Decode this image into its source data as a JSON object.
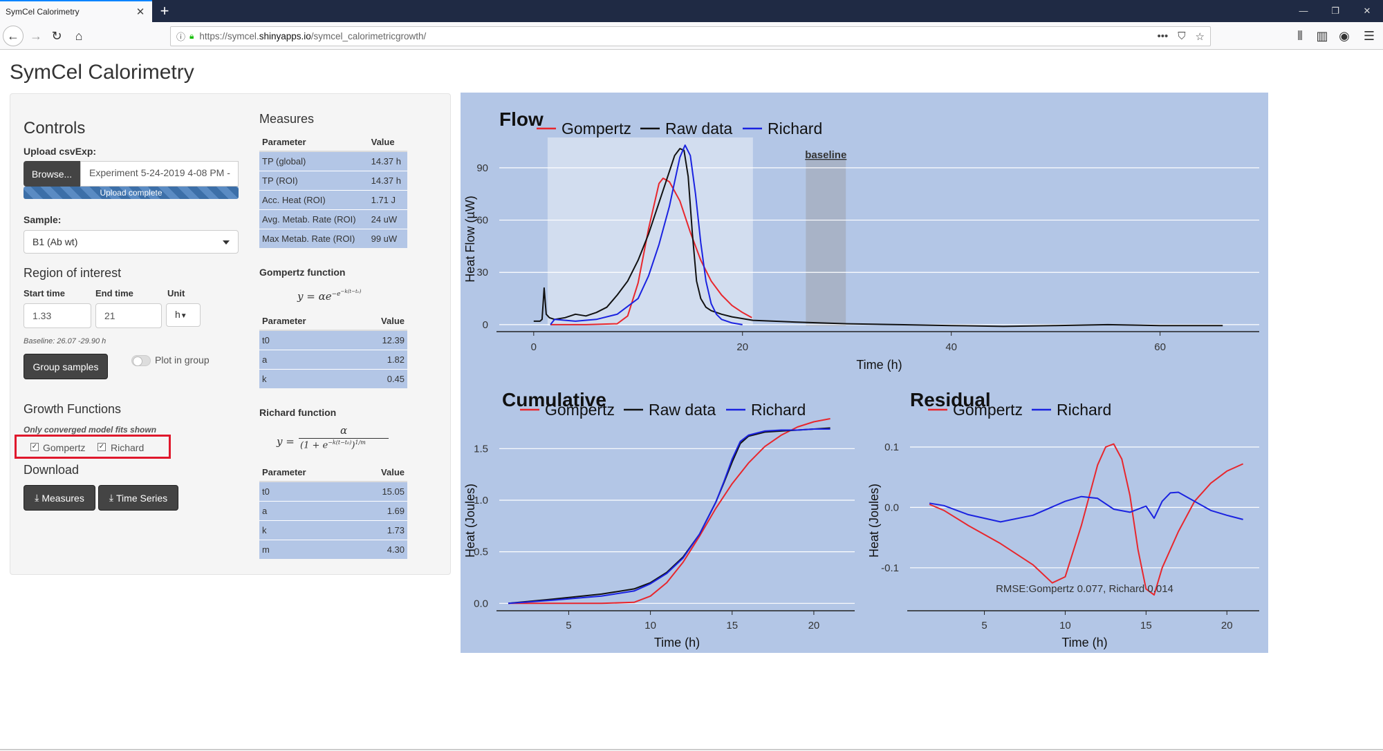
{
  "browser": {
    "tab_title": "SymCel Calorimetry",
    "tab_close": "✕",
    "new_tab": "+",
    "url_domain_pre": "https://symcel.",
    "url_domain": "shinyapps.io",
    "url_path": "/symcel_calorimetricgrowth/"
  },
  "app": {
    "title": "SymCel Calorimetry",
    "controls_heading": "Controls",
    "upload_label": "Upload csvExp:",
    "browse_label": "Browse...",
    "file_name": "Experiment 5-24-2019 4-08 PM -",
    "upload_status": "Upload complete",
    "upload_progress": 1.0,
    "sample_label": "Sample:",
    "sample_value": "B1 (Ab wt)",
    "roi_heading": "Region of interest",
    "start_label": "Start time",
    "end_label": "End time",
    "unit_label": "Unit",
    "start_value": "1.33",
    "end_value": "21",
    "unit_value": "h",
    "baseline_note": "Baseline: 26.07 -29.90 h",
    "group_button": "Group samples",
    "plot_in_group": "Plot in group",
    "plot_in_group_on": false,
    "growth_heading": "Growth Functions",
    "converged_note": "Only converged model fits shown",
    "gompertz_label": "Gompertz",
    "richard_label": "Richard",
    "gompertz_checked": true,
    "richard_checked": true,
    "download_heading": "Download",
    "measures_button": "Measures",
    "timeseries_button": "Time Series"
  },
  "measures": {
    "heading": "Measures",
    "col_param": "Parameter",
    "col_value": "Value",
    "rows": [
      {
        "param": "TP (global)",
        "value": "14.37 h"
      },
      {
        "param": "TP (ROI)",
        "value": "14.37 h"
      },
      {
        "param": "Acc. Heat (ROI)",
        "value": "1.71 J"
      },
      {
        "param": "Avg. Metab. Rate (ROI)",
        "value": "24 uW"
      },
      {
        "param": "Max Metab. Rate (ROI)",
        "value": "99 uW"
      }
    ],
    "gompertz_heading": "Gompertz function",
    "gompertz_rows": [
      {
        "param": "t0",
        "value": "12.39"
      },
      {
        "param": "a",
        "value": "1.82"
      },
      {
        "param": "k",
        "value": "0.45"
      }
    ],
    "richard_heading": "Richard function",
    "richard_rows": [
      {
        "param": "t0",
        "value": "15.05"
      },
      {
        "param": "a",
        "value": "1.69"
      },
      {
        "param": "k",
        "value": "1.73"
      },
      {
        "param": "m",
        "value": "4.30"
      }
    ]
  },
  "colors": {
    "gompertz": "#e8262c",
    "raw": "#111111",
    "richard": "#1a22e0",
    "panel_bg": "#b3c6e6"
  },
  "chart_data": [
    {
      "type": "line",
      "title": "Flow",
      "xlabel": "Time (h)",
      "ylabel": "Heat Flow (µW)",
      "xticks": [
        "0",
        "20",
        "40",
        "60"
      ],
      "yticks": [
        "0",
        "30",
        "60",
        "90"
      ],
      "xlim": [
        -3.3,
        69.5
      ],
      "ylim": [
        -4,
        107
      ],
      "highlight_roi": [
        1.33,
        21
      ],
      "baseline_band": [
        26.07,
        29.9
      ],
      "baseline_label": "baseline",
      "legend": [
        "Gompertz",
        "Raw data",
        "Richard"
      ],
      "series": [
        {
          "name": "Gompertz",
          "x": [
            1.6,
            5,
            8,
            9,
            10,
            11,
            12,
            12.39,
            13,
            14,
            15,
            16,
            17,
            18,
            19,
            20,
            20.9
          ],
          "y": [
            0,
            0,
            0.5,
            5,
            24,
            55,
            81,
            84,
            82,
            71,
            53,
            37,
            25,
            17,
            11,
            7,
            4
          ]
        },
        {
          "name": "Raw data",
          "x": [
            0,
            0.4,
            0.6,
            0.8,
            1.0,
            1.2,
            1.5,
            2,
            3,
            4,
            5,
            6,
            7,
            8,
            9,
            10,
            11,
            12,
            13,
            13.5,
            14,
            14.4,
            14.8,
            15.2,
            15.6,
            16,
            16.5,
            17,
            18,
            19,
            20,
            21,
            25,
            30,
            35,
            40,
            45,
            50,
            55,
            60,
            66
          ],
          "y": [
            2,
            2,
            2,
            3,
            21,
            6,
            4,
            3,
            4,
            6,
            5,
            7,
            10,
            17,
            25,
            37,
            52,
            70,
            88,
            97,
            101,
            100,
            85,
            52,
            25,
            15,
            10,
            8,
            6,
            4.5,
            3.5,
            2.5,
            1.5,
            0.5,
            0,
            -0.5,
            -1,
            -0.5,
            0,
            -0.5,
            -0.5
          ]
        },
        {
          "name": "Richard",
          "x": [
            1.6,
            2,
            4,
            6,
            8,
            10,
            11,
            12,
            13,
            13.5,
            14,
            14.5,
            15,
            15.5,
            16,
            16.5,
            17,
            17.5,
            18,
            19,
            20
          ],
          "y": [
            0,
            3,
            2,
            3,
            6,
            15,
            28,
            46,
            68,
            82,
            96,
            103,
            97,
            75,
            47,
            25,
            12,
            6,
            3,
            1,
            0
          ]
        }
      ]
    },
    {
      "type": "line",
      "title": "Cumulative",
      "xlabel": "Time (h)",
      "ylabel": "Heat (Joules)",
      "xticks": [
        "5",
        "10",
        "15",
        "20"
      ],
      "yticks": [
        "0.0",
        "0.5",
        "1.0",
        "1.5"
      ],
      "xlim": [
        0.75,
        22.5
      ],
      "ylim": [
        -0.065,
        1.75
      ],
      "legend": [
        "Gompertz",
        "Raw data",
        "Richard"
      ],
      "series": [
        {
          "name": "Gompertz",
          "x": [
            1.3,
            4,
            7,
            9,
            10,
            11,
            12,
            13,
            14,
            15,
            16,
            17,
            18,
            19,
            20,
            21
          ],
          "y": [
            0,
            0,
            0,
            0.01,
            0.07,
            0.2,
            0.4,
            0.65,
            0.92,
            1.16,
            1.36,
            1.52,
            1.63,
            1.71,
            1.76,
            1.79
          ]
        },
        {
          "name": "Raw data",
          "x": [
            1.3,
            4,
            7,
            9,
            10,
            11,
            12,
            13,
            14,
            14.5,
            15,
            15.5,
            16,
            17,
            18,
            19,
            20,
            21
          ],
          "y": [
            0,
            0.04,
            0.09,
            0.14,
            0.2,
            0.3,
            0.45,
            0.67,
            0.98,
            1.17,
            1.37,
            1.55,
            1.62,
            1.66,
            1.67,
            1.68,
            1.69,
            1.7
          ]
        },
        {
          "name": "Richard",
          "x": [
            1.3,
            4,
            7,
            9,
            10,
            11,
            12,
            13,
            14,
            14.5,
            15,
            15.5,
            16,
            17,
            18,
            19,
            20,
            21
          ],
          "y": [
            0,
            0.03,
            0.07,
            0.12,
            0.19,
            0.29,
            0.44,
            0.67,
            0.98,
            1.18,
            1.4,
            1.57,
            1.63,
            1.67,
            1.68,
            1.68,
            1.69,
            1.69
          ]
        }
      ]
    },
    {
      "type": "line",
      "title": "Residual",
      "xlabel": "Time (h)",
      "ylabel": "Heat (Joules)",
      "xticks": [
        "5",
        "10",
        "15",
        "20"
      ],
      "yticks": [
        "-0.1",
        "0.0",
        "0.1"
      ],
      "xlim": [
        0.4,
        22
      ],
      "ylim": [
        -0.17,
        0.14
      ],
      "legend": [
        "Gompertz",
        "Richard"
      ],
      "annotation": "RMSE:Gompertz 0.077, Richard 0.014",
      "series": [
        {
          "name": "Gompertz",
          "x": [
            1.6,
            2.5,
            4,
            6,
            8,
            9.2,
            10,
            11,
            12,
            12.5,
            13,
            13.5,
            14,
            14.5,
            15,
            15.5,
            16,
            17,
            18,
            19,
            20,
            21
          ],
          "y": [
            0.005,
            -0.005,
            -0.03,
            -0.06,
            -0.095,
            -0.125,
            -0.115,
            -0.03,
            0.07,
            0.1,
            0.105,
            0.08,
            0.02,
            -0.07,
            -0.135,
            -0.145,
            -0.1,
            -0.04,
            0.01,
            0.04,
            0.06,
            0.072
          ]
        },
        {
          "name": "Richard",
          "x": [
            1.6,
            2.5,
            4,
            6,
            8,
            10,
            11,
            12,
            13,
            14,
            15,
            15.5,
            16,
            16.5,
            17,
            18,
            19,
            20,
            21
          ],
          "y": [
            0.007,
            0.003,
            -0.012,
            -0.024,
            -0.013,
            0.01,
            0.018,
            0.015,
            -0.003,
            -0.008,
            0.002,
            -0.018,
            0.01,
            0.024,
            0.025,
            0.01,
            -0.005,
            -0.013,
            -0.02
          ]
        }
      ]
    }
  ]
}
